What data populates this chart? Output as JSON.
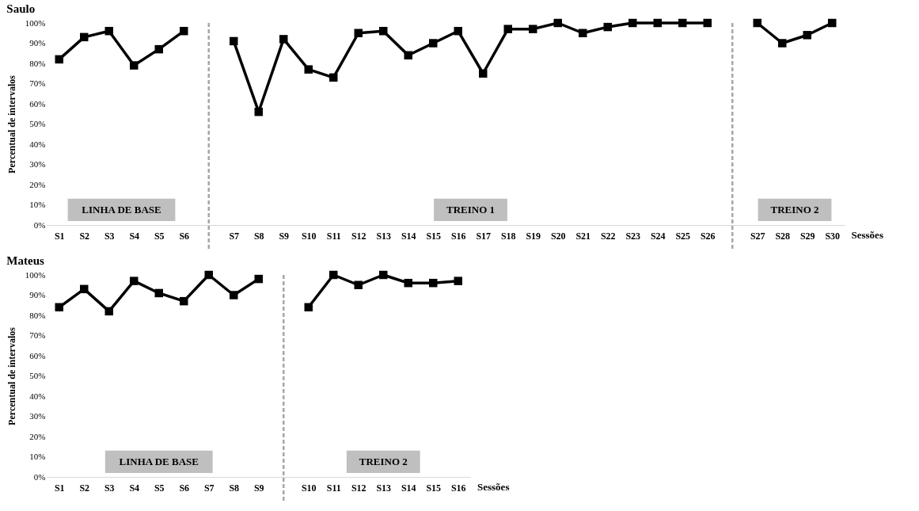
{
  "chart_data": [
    {
      "type": "line",
      "title": "Saulo",
      "ylabel": "Percentual de intervalos",
      "xlabel": "Sessões",
      "categories": [
        "S1",
        "S2",
        "S3",
        "S4",
        "S5",
        "S6",
        null,
        "S7",
        "S8",
        "S9",
        "S10",
        "S11",
        "S12",
        "S13",
        "S14",
        "S15",
        "S16",
        "S17",
        "S18",
        "S19",
        "S20",
        "S21",
        "S22",
        "S23",
        "S24",
        "S25",
        "S26",
        null,
        "S27",
        "S28",
        "S29",
        "S30"
      ],
      "values": [
        82,
        93,
        96,
        79,
        87,
        96,
        null,
        91,
        56,
        92,
        77,
        73,
        95,
        96,
        84,
        90,
        96,
        75,
        97,
        97,
        100,
        95,
        98,
        100,
        100,
        100,
        100,
        null,
        100,
        90,
        94,
        100
      ],
      "color": "#000000",
      "marker": "square",
      "line_style": "solid",
      "ylim": [
        0,
        100
      ],
      "yticks": [
        {
          "value": 0,
          "label": "0%"
        },
        {
          "value": 10,
          "label": "10%"
        },
        {
          "value": 20,
          "label": "20%"
        },
        {
          "value": 30,
          "label": "30%"
        },
        {
          "value": 40,
          "label": "40%"
        },
        {
          "value": 50,
          "label": "50%"
        },
        {
          "value": 60,
          "label": "60%"
        },
        {
          "value": 70,
          "label": "70%"
        },
        {
          "value": 80,
          "label": "80%"
        },
        {
          "value": 90,
          "label": "90%"
        },
        {
          "value": 100,
          "label": "100%"
        }
      ],
      "annotations": [
        "LINHA DE BASE",
        "TREINO 1",
        "TREINO 2"
      ]
    },
    {
      "type": "line",
      "title": "Mateus",
      "ylabel": "Percentual de intervalos",
      "xlabel": "Sessões",
      "categories": [
        "S1",
        "S2",
        "S3",
        "S4",
        "S5",
        "S6",
        "S7",
        "S8",
        "S9",
        null,
        "S10",
        "S11",
        "S12",
        "S13",
        "S14",
        "S15",
        "S16"
      ],
      "values": [
        84,
        93,
        82,
        97,
        91,
        87,
        100,
        90,
        98,
        null,
        84,
        100,
        95,
        100,
        96,
        96,
        97
      ],
      "color": "#000000",
      "marker": "square",
      "line_style": "solid",
      "ylim": [
        0,
        100
      ],
      "yticks": [
        {
          "value": 0,
          "label": "0%"
        },
        {
          "value": 10,
          "label": "10%"
        },
        {
          "value": 20,
          "label": "20%"
        },
        {
          "value": 30,
          "label": "30%"
        },
        {
          "value": 40,
          "label": "40%"
        },
        {
          "value": 50,
          "label": "50%"
        },
        {
          "value": 60,
          "label": "60%"
        },
        {
          "value": 70,
          "label": "70%"
        },
        {
          "value": 80,
          "label": "80%"
        },
        {
          "value": 90,
          "label": "90%"
        },
        {
          "value": 100,
          "label": "100%"
        }
      ],
      "annotations": [
        "LINHA DE BASE",
        "TREINO 2"
      ]
    }
  ]
}
